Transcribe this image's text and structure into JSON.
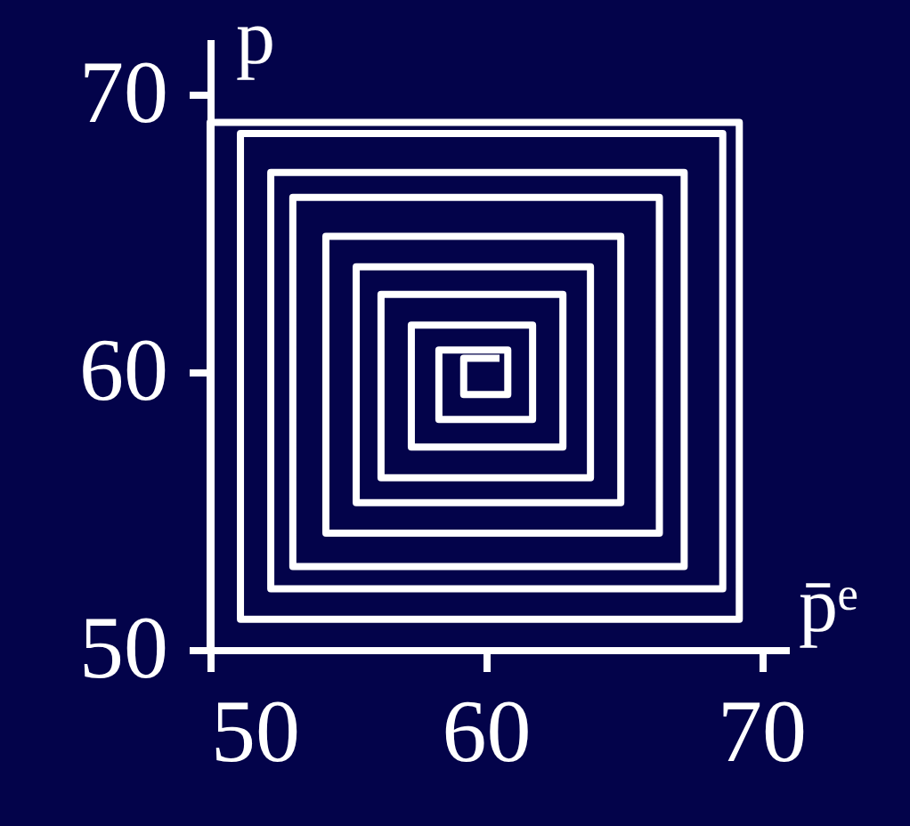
{
  "chart_data": {
    "type": "line",
    "xlabel": "p̄ᵉ",
    "ylabel": "p",
    "xlim": [
      50,
      71
    ],
    "ylim": [
      50,
      72
    ],
    "xticks": [
      50,
      60,
      70
    ],
    "yticks": [
      50,
      60,
      70
    ],
    "grid": false,
    "marker": "none",
    "line_style": "solid",
    "series": [
      {
        "color": "#ffffff",
        "x": [
          50,
          50,
          69.2,
          69.2,
          51.1,
          51.1,
          68.6,
          68.6,
          52.2,
          52.2,
          67.2,
          67.2,
          53,
          53,
          66.3,
          66.3,
          54.2,
          54.2,
          64.9,
          64.9,
          55.3,
          55.3,
          63.8,
          63.8,
          56.2,
          56.2,
          62.8,
          62.8,
          57.3,
          57.3,
          61.7,
          61.7,
          58.3,
          58.3,
          60.8,
          60.8,
          59.2,
          59.2,
          60.5
        ],
        "values": [
          50,
          69,
          69,
          51.1,
          51.1,
          68.6,
          68.6,
          52.2,
          52.2,
          67.2,
          67.2,
          53,
          53,
          66.3,
          66.3,
          54.2,
          54.2,
          64.9,
          64.9,
          55.3,
          55.3,
          63.8,
          63.8,
          56.2,
          56.2,
          62.8,
          62.8,
          57.3,
          57.3,
          61.7,
          61.7,
          58.3,
          58.3,
          60.8,
          60.8,
          59.2,
          59.2,
          60.5,
          60.5
        ]
      }
    ]
  }
}
